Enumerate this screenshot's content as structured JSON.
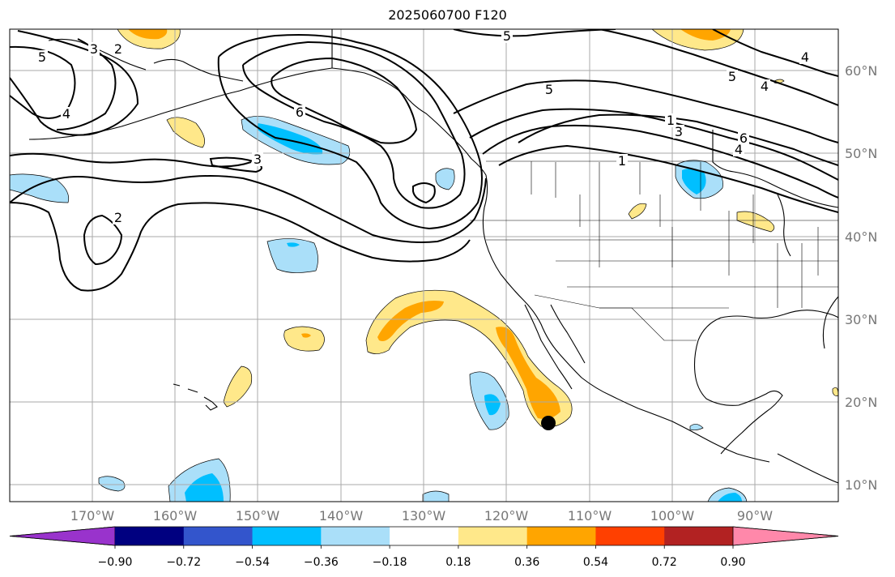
{
  "title": "2025060700 F120",
  "map": {
    "lon_range": [
      -180,
      -80
    ],
    "lat_range": [
      8,
      65
    ],
    "gridlines": true,
    "lat_labels": [
      "60°N",
      "50°N",
      "40°N",
      "30°N",
      "20°N",
      "10°N"
    ],
    "lon_labels": [
      "170°W",
      "160°W",
      "150°W",
      "140°W",
      "130°W",
      "120°W",
      "110°W",
      "100°W",
      "90°W"
    ],
    "contour_labels": [
      "5",
      "3",
      "2",
      "4",
      "6",
      "5",
      "5",
      "4",
      "4",
      "5",
      "6",
      "4",
      "1",
      "3",
      "1",
      "3",
      "2"
    ],
    "marker": {
      "label": "storm-position",
      "lon": -115,
      "lat": 17.3,
      "color": "#000000"
    }
  },
  "colorbar": {
    "tick_labels": [
      "−0.90",
      "−0.72",
      "−0.54",
      "−0.36",
      "−0.18",
      "0.18",
      "0.36",
      "0.54",
      "0.72",
      "0.90"
    ],
    "colors": [
      "#9933cc",
      "#000080",
      "#3355cc",
      "#00bfff",
      "#aadff9",
      "#ffffff",
      "#ffe88a",
      "#ffa500",
      "#ff4000",
      "#b22222",
      "#ff88aa"
    ]
  },
  "colors": {
    "axis_label": "#777777",
    "grid": "#aaaaaa",
    "contour": "#000000",
    "coast": "#000000"
  }
}
